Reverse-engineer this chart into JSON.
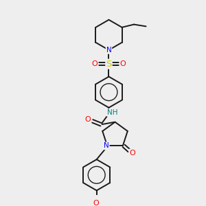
{
  "bg_color": "#eeeeee",
  "bond_color": "#1a1a1a",
  "N_color": "#0000ff",
  "O_color": "#ff0000",
  "S_color": "#cccc00",
  "NH_color": "#008080",
  "line_width": 1.4,
  "figsize": [
    3.0,
    3.0
  ],
  "dpi": 100,
  "xlim": [
    0,
    10
  ],
  "ylim": [
    0,
    10
  ]
}
